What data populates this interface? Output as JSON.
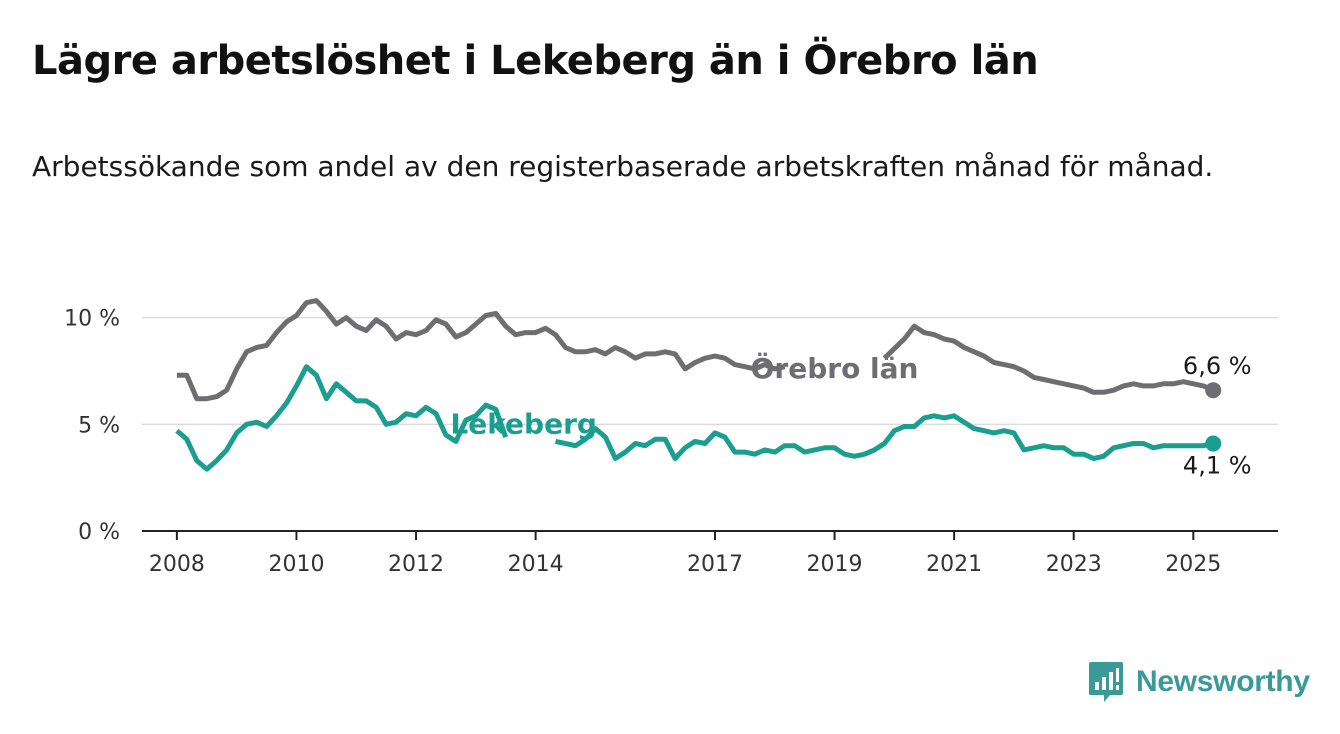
{
  "title": "Lägre arbetslöshet i Lekeberg än i Örebro län",
  "subtitle": "Arbetssökande som andel av den registerbaserade arbetskraften månad för månad.",
  "brand": "Newsworthy",
  "colors": {
    "lekeberg": "#1a9e8f",
    "orebro": "#6e6e72",
    "grid": "#dcdcdc",
    "axis": "#222222",
    "brand": "#3a9a98"
  },
  "chart_data": {
    "type": "line",
    "x_ticks": [
      "2008",
      "2010",
      "2012",
      "2014",
      "2017",
      "2019",
      "2021",
      "2023",
      "2025"
    ],
    "y_ticks": [
      "0 %",
      "5 %",
      "10 %"
    ],
    "ylim": [
      0,
      12
    ],
    "xlim": [
      "2007-06",
      "2026-06"
    ],
    "grid": true,
    "series": [
      {
        "name": "Örebro län",
        "color": "#6e6e72",
        "end_label": "6,6 %",
        "points": [
          [
            "2008-01",
            7.3
          ],
          [
            "2008-03",
            7.3
          ],
          [
            "2008-05",
            6.2
          ],
          [
            "2008-07",
            6.2
          ],
          [
            "2008-09",
            6.3
          ],
          [
            "2008-11",
            6.6
          ],
          [
            "2009-01",
            7.6
          ],
          [
            "2009-03",
            8.4
          ],
          [
            "2009-05",
            8.6
          ],
          [
            "2009-07",
            8.7
          ],
          [
            "2009-09",
            9.3
          ],
          [
            "2009-11",
            9.8
          ],
          [
            "2010-01",
            10.1
          ],
          [
            "2010-03",
            10.7
          ],
          [
            "2010-05",
            10.8
          ],
          [
            "2010-07",
            10.3
          ],
          [
            "2010-09",
            9.7
          ],
          [
            "2010-11",
            10.0
          ],
          [
            "2011-01",
            9.6
          ],
          [
            "2011-03",
            9.4
          ],
          [
            "2011-05",
            9.9
          ],
          [
            "2011-07",
            9.6
          ],
          [
            "2011-09",
            9.0
          ],
          [
            "2011-11",
            9.3
          ],
          [
            "2012-01",
            9.2
          ],
          [
            "2012-03",
            9.4
          ],
          [
            "2012-05",
            9.9
          ],
          [
            "2012-07",
            9.7
          ],
          [
            "2012-09",
            9.1
          ],
          [
            "2012-11",
            9.3
          ],
          [
            "2013-01",
            9.7
          ],
          [
            "2013-03",
            10.1
          ],
          [
            "2013-05",
            10.2
          ],
          [
            "2013-07",
            9.6
          ],
          [
            "2013-09",
            9.2
          ],
          [
            "2013-11",
            9.3
          ],
          [
            "2014-01",
            9.3
          ],
          [
            "2014-03",
            9.5
          ],
          [
            "2014-05",
            9.2
          ],
          [
            "2014-07",
            8.6
          ],
          [
            "2014-09",
            8.4
          ],
          [
            "2014-11",
            8.4
          ],
          [
            "2015-01",
            8.5
          ],
          [
            "2015-03",
            8.3
          ],
          [
            "2015-05",
            8.6
          ],
          [
            "2015-07",
            8.4
          ],
          [
            "2015-09",
            8.1
          ],
          [
            "2015-11",
            8.3
          ],
          [
            "2016-01",
            8.3
          ],
          [
            "2016-03",
            8.4
          ],
          [
            "2016-05",
            8.3
          ],
          [
            "2016-07",
            7.6
          ],
          [
            "2016-09",
            7.9
          ],
          [
            "2016-11",
            8.1
          ],
          [
            "2017-01",
            8.2
          ],
          [
            "2017-03",
            8.1
          ],
          [
            "2017-05",
            7.8
          ],
          [
            "2017-07",
            7.7
          ],
          [
            "2017-09",
            7.6
          ],
          [
            "2017-11",
            7.8
          ],
          [
            "2018-01",
            7.6
          ],
          [
            "2018-03",
            7.7
          ],
          [
            "2019-11",
            8.1
          ],
          [
            "2020-03",
            9.0
          ],
          [
            "2020-05",
            9.6
          ],
          [
            "2020-07",
            9.3
          ],
          [
            "2020-09",
            9.2
          ],
          [
            "2020-11",
            9.0
          ],
          [
            "2021-01",
            8.9
          ],
          [
            "2021-03",
            8.6
          ],
          [
            "2021-05",
            8.4
          ],
          [
            "2021-07",
            8.2
          ],
          [
            "2021-09",
            7.9
          ],
          [
            "2021-11",
            7.8
          ],
          [
            "2022-01",
            7.7
          ],
          [
            "2022-03",
            7.5
          ],
          [
            "2022-05",
            7.2
          ],
          [
            "2022-07",
            7.1
          ],
          [
            "2022-09",
            7.0
          ],
          [
            "2022-11",
            6.9
          ],
          [
            "2023-01",
            6.8
          ],
          [
            "2023-03",
            6.7
          ],
          [
            "2023-05",
            6.5
          ],
          [
            "2023-07",
            6.5
          ],
          [
            "2023-09",
            6.6
          ],
          [
            "2023-11",
            6.8
          ],
          [
            "2024-01",
            6.9
          ],
          [
            "2024-03",
            6.8
          ],
          [
            "2024-05",
            6.8
          ],
          [
            "2024-07",
            6.9
          ],
          [
            "2024-09",
            6.9
          ],
          [
            "2024-11",
            7.0
          ],
          [
            "2025-01",
            6.9
          ],
          [
            "2025-03",
            6.8
          ],
          [
            "2025-05",
            6.6
          ]
        ]
      },
      {
        "name": "Lekeberg",
        "color": "#1a9e8f",
        "end_label": "4,1 %",
        "points": [
          [
            "2008-01",
            4.7
          ],
          [
            "2008-03",
            4.3
          ],
          [
            "2008-05",
            3.3
          ],
          [
            "2008-07",
            2.9
          ],
          [
            "2008-09",
            3.3
          ],
          [
            "2008-11",
            3.8
          ],
          [
            "2009-01",
            4.6
          ],
          [
            "2009-03",
            5.0
          ],
          [
            "2009-05",
            5.1
          ],
          [
            "2009-07",
            4.9
          ],
          [
            "2009-09",
            5.4
          ],
          [
            "2009-11",
            6.0
          ],
          [
            "2010-01",
            6.8
          ],
          [
            "2010-03",
            7.7
          ],
          [
            "2010-05",
            7.3
          ],
          [
            "2010-07",
            6.2
          ],
          [
            "2010-09",
            6.9
          ],
          [
            "2010-11",
            6.5
          ],
          [
            "2011-01",
            6.1
          ],
          [
            "2011-03",
            6.1
          ],
          [
            "2011-05",
            5.8
          ],
          [
            "2011-07",
            5.0
          ],
          [
            "2011-09",
            5.1
          ],
          [
            "2011-11",
            5.5
          ],
          [
            "2012-01",
            5.4
          ],
          [
            "2012-03",
            5.8
          ],
          [
            "2012-05",
            5.5
          ],
          [
            "2012-07",
            4.5
          ],
          [
            "2012-09",
            4.2
          ],
          [
            "2012-11",
            5.2
          ],
          [
            "2013-01",
            5.4
          ],
          [
            "2013-03",
            5.9
          ],
          [
            "2013-05",
            5.7
          ],
          [
            "2013-07",
            4.4
          ],
          [
            "2014-05",
            4.2
          ],
          [
            "2014-07",
            4.1
          ],
          [
            "2014-09",
            4.0
          ],
          [
            "2014-11",
            4.3
          ],
          [
            "2015-01",
            4.8
          ],
          [
            "2015-03",
            4.4
          ],
          [
            "2015-05",
            3.4
          ],
          [
            "2015-07",
            3.7
          ],
          [
            "2015-09",
            4.1
          ],
          [
            "2015-11",
            4.0
          ],
          [
            "2016-01",
            4.3
          ],
          [
            "2016-03",
            4.3
          ],
          [
            "2016-05",
            3.4
          ],
          [
            "2016-07",
            3.9
          ],
          [
            "2016-09",
            4.2
          ],
          [
            "2016-11",
            4.1
          ],
          [
            "2017-01",
            4.6
          ],
          [
            "2017-03",
            4.4
          ],
          [
            "2017-05",
            3.7
          ],
          [
            "2017-07",
            3.7
          ],
          [
            "2017-09",
            3.6
          ],
          [
            "2017-11",
            3.8
          ],
          [
            "2018-01",
            3.7
          ],
          [
            "2018-03",
            4.0
          ],
          [
            "2018-05",
            4.0
          ],
          [
            "2018-07",
            3.7
          ],
          [
            "2018-09",
            3.8
          ],
          [
            "2018-11",
            3.9
          ],
          [
            "2019-01",
            3.9
          ],
          [
            "2019-03",
            3.6
          ],
          [
            "2019-05",
            3.5
          ],
          [
            "2019-07",
            3.6
          ],
          [
            "2019-09",
            3.8
          ],
          [
            "2019-11",
            4.1
          ],
          [
            "2020-01",
            4.7
          ],
          [
            "2020-03",
            4.9
          ],
          [
            "2020-05",
            4.9
          ],
          [
            "2020-07",
            5.3
          ],
          [
            "2020-09",
            5.4
          ],
          [
            "2020-11",
            5.3
          ],
          [
            "2021-01",
            5.4
          ],
          [
            "2021-03",
            5.1
          ],
          [
            "2021-05",
            4.8
          ],
          [
            "2021-07",
            4.7
          ],
          [
            "2021-09",
            4.6
          ],
          [
            "2021-11",
            4.7
          ],
          [
            "2022-01",
            4.6
          ],
          [
            "2022-03",
            3.8
          ],
          [
            "2022-05",
            3.9
          ],
          [
            "2022-07",
            4.0
          ],
          [
            "2022-09",
            3.9
          ],
          [
            "2022-11",
            3.9
          ],
          [
            "2023-01",
            3.6
          ],
          [
            "2023-03",
            3.6
          ],
          [
            "2023-05",
            3.4
          ],
          [
            "2023-07",
            3.5
          ],
          [
            "2023-09",
            3.9
          ],
          [
            "2023-11",
            4.0
          ],
          [
            "2024-01",
            4.1
          ],
          [
            "2024-03",
            4.1
          ],
          [
            "2024-05",
            3.9
          ],
          [
            "2024-07",
            4.0
          ],
          [
            "2024-09",
            4.0
          ],
          [
            "2024-11",
            4.0
          ],
          [
            "2025-01",
            4.0
          ],
          [
            "2025-03",
            4.0
          ],
          [
            "2025-05",
            4.1
          ]
        ]
      }
    ]
  }
}
